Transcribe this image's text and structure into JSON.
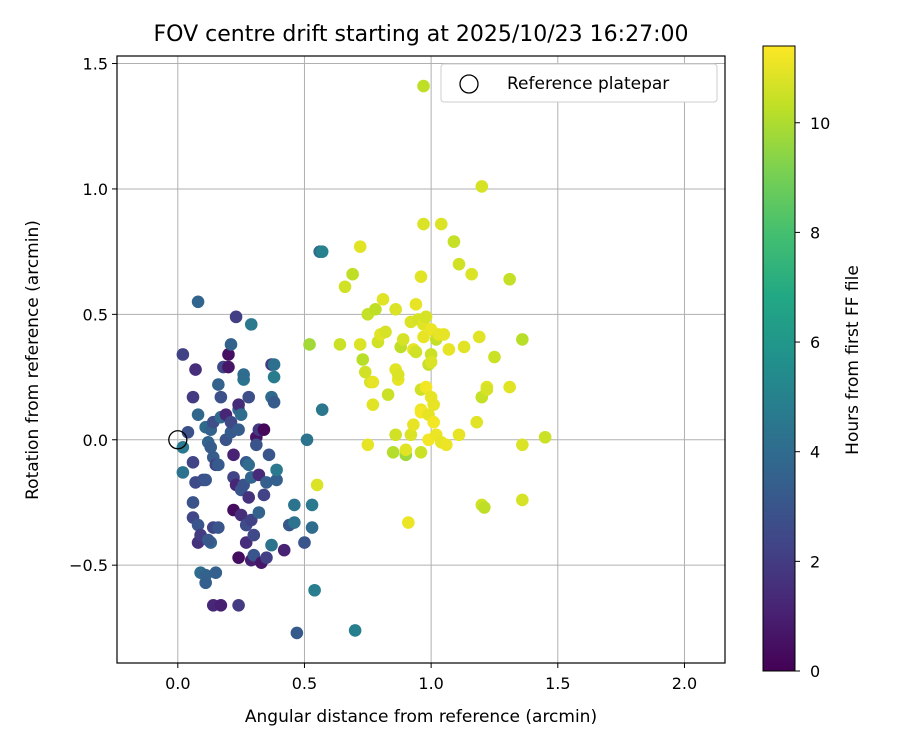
{
  "chart_data": {
    "type": "scatter",
    "title": "FOV centre drift starting at 2025/10/23 16:27:00",
    "xlabel": "Angular distance from reference (arcmin)",
    "ylabel": "Rotation from reference (arcmin)",
    "xlim": [
      -0.24,
      2.16
    ],
    "ylim": [
      -0.89,
      1.53
    ],
    "xticks": [
      0.0,
      0.5,
      1.0,
      1.5,
      2.0
    ],
    "xtick_labels": [
      "0.0",
      "0.5",
      "1.0",
      "1.5",
      "2.0"
    ],
    "yticks": [
      -0.5,
      0.0,
      0.5,
      1.0,
      1.5
    ],
    "ytick_labels": [
      "−0.5",
      "0.0",
      "0.5",
      "1.0",
      "1.5"
    ],
    "grid": true,
    "legend": {
      "position": "top-right",
      "label": "Reference platepar"
    },
    "reference_point": {
      "x": 0.0,
      "y": 0.0
    },
    "colorbar": {
      "label": "Hours from first FF file",
      "min": 0,
      "max": 11.4,
      "ticks": [
        0,
        2,
        4,
        6,
        8,
        10
      ],
      "tick_labels": [
        "0",
        "2",
        "4",
        "6",
        "8",
        "10"
      ],
      "colormap": "viridis"
    },
    "points": [
      {
        "x": 0.02,
        "y": 0.34,
        "h": 2.2
      },
      {
        "x": 0.08,
        "y": 0.55,
        "h": 3.7
      },
      {
        "x": 0.06,
        "y": 0.17,
        "h": 2.0
      },
      {
        "x": 0.07,
        "y": 0.28,
        "h": 1.5
      },
      {
        "x": 0.04,
        "y": 0.03,
        "h": 2.8
      },
      {
        "x": 0.02,
        "y": -0.03,
        "h": 4.6
      },
      {
        "x": 0.02,
        "y": -0.13,
        "h": 4.3
      },
      {
        "x": 0.06,
        "y": -0.09,
        "h": 2.3
      },
      {
        "x": 0.07,
        "y": -0.17,
        "h": 2.5
      },
      {
        "x": 0.06,
        "y": -0.25,
        "h": 2.9
      },
      {
        "x": 0.06,
        "y": -0.31,
        "h": 2.4
      },
      {
        "x": 0.08,
        "y": -0.34,
        "h": 3.0
      },
      {
        "x": 0.08,
        "y": -0.41,
        "h": 1.6
      },
      {
        "x": 0.09,
        "y": -0.38,
        "h": 2.0
      },
      {
        "x": 0.09,
        "y": -0.53,
        "h": 4.0
      },
      {
        "x": 0.11,
        "y": -0.54,
        "h": 3.6
      },
      {
        "x": 0.11,
        "y": -0.57,
        "h": 3.4
      },
      {
        "x": 0.13,
        "y": -0.41,
        "h": 3.5
      },
      {
        "x": 0.12,
        "y": -0.4,
        "h": 3.1
      },
      {
        "x": 0.14,
        "y": -0.66,
        "h": 1.3
      },
      {
        "x": 0.17,
        "y": -0.66,
        "h": 1.0
      },
      {
        "x": 0.15,
        "y": -0.53,
        "h": 3.4
      },
      {
        "x": 0.14,
        "y": -0.35,
        "h": 2.3
      },
      {
        "x": 0.16,
        "y": -0.35,
        "h": 3.0
      },
      {
        "x": 0.08,
        "y": 0.1,
        "h": 3.8
      },
      {
        "x": 0.11,
        "y": 0.05,
        "h": 3.9
      },
      {
        "x": 0.1,
        "y": -0.16,
        "h": 2.6
      },
      {
        "x": 0.11,
        "y": -0.16,
        "h": 3.0
      },
      {
        "x": 0.12,
        "y": -0.01,
        "h": 3.7
      },
      {
        "x": 0.13,
        "y": -0.03,
        "h": 3.3
      },
      {
        "x": 0.13,
        "y": 0.04,
        "h": 3.6
      },
      {
        "x": 0.14,
        "y": 0.07,
        "h": 2.7
      },
      {
        "x": 0.14,
        "y": -0.07,
        "h": 3.3
      },
      {
        "x": 0.15,
        "y": -0.1,
        "h": 2.2
      },
      {
        "x": 0.16,
        "y": -0.1,
        "h": 3.2
      },
      {
        "x": 0.16,
        "y": 0.22,
        "h": 3.6
      },
      {
        "x": 0.17,
        "y": 0.09,
        "h": 3.9
      },
      {
        "x": 0.17,
        "y": 0.17,
        "h": 2.8
      },
      {
        "x": 0.18,
        "y": 0.29,
        "h": 2.4
      },
      {
        "x": 0.19,
        "y": 0.1,
        "h": 1.2
      },
      {
        "x": 0.19,
        "y": 0.0,
        "h": 2.9
      },
      {
        "x": 0.2,
        "y": 0.34,
        "h": 0.5
      },
      {
        "x": 0.2,
        "y": 0.29,
        "h": 0.7
      },
      {
        "x": 0.21,
        "y": 0.38,
        "h": 3.6
      },
      {
        "x": 0.21,
        "y": 0.03,
        "h": 3.2
      },
      {
        "x": 0.21,
        "y": 0.07,
        "h": 2.5
      },
      {
        "x": 0.22,
        "y": -0.06,
        "h": 1.1
      },
      {
        "x": 0.22,
        "y": -0.15,
        "h": 2.3
      },
      {
        "x": 0.23,
        "y": -0.18,
        "h": 1.2
      },
      {
        "x": 0.22,
        "y": -0.28,
        "h": 0.4
      },
      {
        "x": 0.23,
        "y": 0.49,
        "h": 2.1
      },
      {
        "x": 0.24,
        "y": 0.04,
        "h": 3.3
      },
      {
        "x": 0.24,
        "y": 0.12,
        "h": 3.8
      },
      {
        "x": 0.24,
        "y": 0.14,
        "h": 1.4
      },
      {
        "x": 0.25,
        "y": 0.1,
        "h": 4.0
      },
      {
        "x": 0.25,
        "y": -0.2,
        "h": 3.0
      },
      {
        "x": 0.25,
        "y": -0.3,
        "h": 1.5
      },
      {
        "x": 0.24,
        "y": -0.47,
        "h": 0.4
      },
      {
        "x": 0.24,
        "y": -0.66,
        "h": 2.0
      },
      {
        "x": 0.26,
        "y": 0.24,
        "h": 4.4
      },
      {
        "x": 0.26,
        "y": 0.26,
        "h": 4.0
      },
      {
        "x": 0.26,
        "y": -0.18,
        "h": 2.9
      },
      {
        "x": 0.27,
        "y": -0.34,
        "h": 2.6
      },
      {
        "x": 0.27,
        "y": -0.41,
        "h": 1.5
      },
      {
        "x": 0.27,
        "y": -0.09,
        "h": 3.2
      },
      {
        "x": 0.28,
        "y": -0.1,
        "h": 4.0
      },
      {
        "x": 0.28,
        "y": -0.23,
        "h": 1.6
      },
      {
        "x": 0.28,
        "y": 0.17,
        "h": 2.7
      },
      {
        "x": 0.29,
        "y": 0.46,
        "h": 4.6
      },
      {
        "x": 0.29,
        "y": -0.15,
        "h": 3.7
      },
      {
        "x": 0.29,
        "y": -0.32,
        "h": 2.2
      },
      {
        "x": 0.29,
        "y": -0.48,
        "h": 1.0
      },
      {
        "x": 0.3,
        "y": -0.46,
        "h": 3.0
      },
      {
        "x": 0.3,
        "y": -0.38,
        "h": 2.5
      },
      {
        "x": 0.31,
        "y": 0.01,
        "h": 0.6
      },
      {
        "x": 0.31,
        "y": -0.02,
        "h": 2.9
      },
      {
        "x": 0.32,
        "y": 0.04,
        "h": 1.9
      },
      {
        "x": 0.32,
        "y": -0.14,
        "h": 1.4
      },
      {
        "x": 0.32,
        "y": -0.29,
        "h": 3.6
      },
      {
        "x": 0.33,
        "y": -0.49,
        "h": 0.7
      },
      {
        "x": 0.34,
        "y": 0.04,
        "h": 0.2
      },
      {
        "x": 0.34,
        "y": -0.22,
        "h": 2.3
      },
      {
        "x": 0.35,
        "y": -0.47,
        "h": 2.1
      },
      {
        "x": 0.35,
        "y": -0.17,
        "h": 3.4
      },
      {
        "x": 0.36,
        "y": -0.06,
        "h": 3.0
      },
      {
        "x": 0.37,
        "y": -0.42,
        "h": 4.4
      },
      {
        "x": 0.37,
        "y": 0.3,
        "h": 2.0
      },
      {
        "x": 0.37,
        "y": 0.17,
        "h": 3.9
      },
      {
        "x": 0.38,
        "y": 0.25,
        "h": 4.7
      },
      {
        "x": 0.38,
        "y": 0.3,
        "h": 4.2
      },
      {
        "x": 0.38,
        "y": 0.15,
        "h": 3.3
      },
      {
        "x": 0.39,
        "y": -0.16,
        "h": 3.4
      },
      {
        "x": 0.39,
        "y": -0.12,
        "h": 4.6
      },
      {
        "x": 0.42,
        "y": -0.44,
        "h": 1.1
      },
      {
        "x": 0.44,
        "y": -0.34,
        "h": 3.1
      },
      {
        "x": 0.46,
        "y": -0.26,
        "h": 4.4
      },
      {
        "x": 0.46,
        "y": -0.33,
        "h": 4.3
      },
      {
        "x": 0.47,
        "y": -0.77,
        "h": 3.2
      },
      {
        "x": 0.5,
        "y": -0.41,
        "h": 3.0
      },
      {
        "x": 0.51,
        "y": 0.0,
        "h": 4.4
      },
      {
        "x": 0.52,
        "y": 0.38,
        "h": 9.8
      },
      {
        "x": 0.53,
        "y": -0.26,
        "h": 4.6
      },
      {
        "x": 0.53,
        "y": -0.35,
        "h": 4.0
      },
      {
        "x": 0.54,
        "y": -0.6,
        "h": 4.8
      },
      {
        "x": 0.55,
        "y": -0.18,
        "h": 10.8
      },
      {
        "x": 0.56,
        "y": 0.75,
        "h": 4.0
      },
      {
        "x": 0.57,
        "y": 0.75,
        "h": 5.0
      },
      {
        "x": 0.57,
        "y": 0.12,
        "h": 4.5
      },
      {
        "x": 0.64,
        "y": 0.38,
        "h": 10.5
      },
      {
        "x": 0.66,
        "y": 0.61,
        "h": 10.6
      },
      {
        "x": 0.69,
        "y": 0.66,
        "h": 10.3
      },
      {
        "x": 0.7,
        "y": -0.76,
        "h": 4.9
      },
      {
        "x": 0.72,
        "y": 0.77,
        "h": 10.9
      },
      {
        "x": 0.72,
        "y": 0.38,
        "h": 10.8
      },
      {
        "x": 0.73,
        "y": 0.32,
        "h": 10.2
      },
      {
        "x": 0.74,
        "y": 0.27,
        "h": 10.6
      },
      {
        "x": 0.75,
        "y": 0.5,
        "h": 10.4
      },
      {
        "x": 0.75,
        "y": -0.02,
        "h": 11.0
      },
      {
        "x": 0.76,
        "y": 0.23,
        "h": 10.7
      },
      {
        "x": 0.77,
        "y": 0.14,
        "h": 10.9
      },
      {
        "x": 0.77,
        "y": 0.23,
        "h": 11.0
      },
      {
        "x": 0.78,
        "y": 0.52,
        "h": 10.3
      },
      {
        "x": 0.79,
        "y": 0.39,
        "h": 10.6
      },
      {
        "x": 0.8,
        "y": 0.42,
        "h": 10.9
      },
      {
        "x": 0.81,
        "y": 0.56,
        "h": 10.9
      },
      {
        "x": 0.82,
        "y": 0.43,
        "h": 10.7
      },
      {
        "x": 0.83,
        "y": 0.18,
        "h": 10.5
      },
      {
        "x": 0.85,
        "y": -0.05,
        "h": 10.1
      },
      {
        "x": 0.86,
        "y": 0.52,
        "h": 10.8
      },
      {
        "x": 0.86,
        "y": 0.28,
        "h": 10.9
      },
      {
        "x": 0.87,
        "y": 0.24,
        "h": 11.0
      },
      {
        "x": 0.87,
        "y": 0.26,
        "h": 10.8
      },
      {
        "x": 0.86,
        "y": 0.02,
        "h": 10.6
      },
      {
        "x": 0.88,
        "y": 0.37,
        "h": 10.3
      },
      {
        "x": 0.89,
        "y": 0.4,
        "h": 10.7
      },
      {
        "x": 0.9,
        "y": -0.06,
        "h": 9.7
      },
      {
        "x": 0.9,
        "y": -0.04,
        "h": 10.9
      },
      {
        "x": 0.91,
        "y": -0.33,
        "h": 11.1
      },
      {
        "x": 0.92,
        "y": 0.47,
        "h": 10.8
      },
      {
        "x": 0.92,
        "y": 0.02,
        "h": 10.8
      },
      {
        "x": 0.93,
        "y": 0.36,
        "h": 11.0
      },
      {
        "x": 0.93,
        "y": 0.06,
        "h": 11.0
      },
      {
        "x": 0.94,
        "y": 0.54,
        "h": 11.0
      },
      {
        "x": 0.94,
        "y": 0.35,
        "h": 10.6
      },
      {
        "x": 0.95,
        "y": 0.48,
        "h": 10.7
      },
      {
        "x": 0.96,
        "y": 0.12,
        "h": 11.1
      },
      {
        "x": 0.96,
        "y": 0.2,
        "h": 10.6
      },
      {
        "x": 0.96,
        "y": 0.11,
        "h": 11.2
      },
      {
        "x": 0.96,
        "y": 0.65,
        "h": 10.9
      },
      {
        "x": 0.96,
        "y": -0.05,
        "h": 10.5
      },
      {
        "x": 0.97,
        "y": 1.41,
        "h": 10.3
      },
      {
        "x": 0.97,
        "y": 0.86,
        "h": 10.8
      },
      {
        "x": 0.97,
        "y": 0.46,
        "h": 10.9
      },
      {
        "x": 0.97,
        "y": 0.41,
        "h": 11.0
      },
      {
        "x": 0.98,
        "y": 0.21,
        "h": 11.2
      },
      {
        "x": 0.98,
        "y": 0.49,
        "h": 10.7
      },
      {
        "x": 0.99,
        "y": 0.3,
        "h": 10.4
      },
      {
        "x": 0.99,
        "y": 0.1,
        "h": 11.0
      },
      {
        "x": 0.99,
        "y": 0.0,
        "h": 11.2
      },
      {
        "x": 1.0,
        "y": 0.34,
        "h": 10.5
      },
      {
        "x": 1.0,
        "y": 0.31,
        "h": 10.8
      },
      {
        "x": 1.0,
        "y": 0.17,
        "h": 11.0
      },
      {
        "x": 1.0,
        "y": 0.44,
        "h": 11.1
      },
      {
        "x": 1.01,
        "y": 0.07,
        "h": 11.2
      },
      {
        "x": 1.01,
        "y": 0.14,
        "h": 11.0
      },
      {
        "x": 1.02,
        "y": 0.02,
        "h": 11.1
      },
      {
        "x": 1.02,
        "y": 0.4,
        "h": 10.4
      },
      {
        "x": 1.03,
        "y": 0.42,
        "h": 11.0
      },
      {
        "x": 1.04,
        "y": 0.86,
        "h": 10.8
      },
      {
        "x": 1.04,
        "y": -0.01,
        "h": 11.0
      },
      {
        "x": 1.05,
        "y": 0.42,
        "h": 11.0
      },
      {
        "x": 1.06,
        "y": -0.02,
        "h": 11.1
      },
      {
        "x": 1.07,
        "y": 0.36,
        "h": 11.0
      },
      {
        "x": 1.09,
        "y": 0.79,
        "h": 10.4
      },
      {
        "x": 1.11,
        "y": 0.7,
        "h": 10.6
      },
      {
        "x": 1.11,
        "y": 0.02,
        "h": 11.0
      },
      {
        "x": 1.13,
        "y": 0.37,
        "h": 10.9
      },
      {
        "x": 1.16,
        "y": 0.66,
        "h": 10.8
      },
      {
        "x": 1.18,
        "y": 0.07,
        "h": 10.9
      },
      {
        "x": 1.19,
        "y": 0.41,
        "h": 10.9
      },
      {
        "x": 1.2,
        "y": 0.17,
        "h": 10.4
      },
      {
        "x": 1.2,
        "y": -0.26,
        "h": 10.6
      },
      {
        "x": 1.2,
        "y": 1.01,
        "h": 10.7
      },
      {
        "x": 1.21,
        "y": -0.27,
        "h": 10.3
      },
      {
        "x": 1.22,
        "y": 0.21,
        "h": 10.9
      },
      {
        "x": 1.22,
        "y": 0.2,
        "h": 10.7
      },
      {
        "x": 1.25,
        "y": 0.33,
        "h": 10.5
      },
      {
        "x": 1.31,
        "y": 0.64,
        "h": 10.4
      },
      {
        "x": 1.31,
        "y": 0.21,
        "h": 10.9
      },
      {
        "x": 1.36,
        "y": 0.4,
        "h": 10.2
      },
      {
        "x": 1.36,
        "y": -0.02,
        "h": 10.8
      },
      {
        "x": 1.36,
        "y": -0.24,
        "h": 10.7
      },
      {
        "x": 1.45,
        "y": 0.01,
        "h": 10.5
      }
    ]
  }
}
